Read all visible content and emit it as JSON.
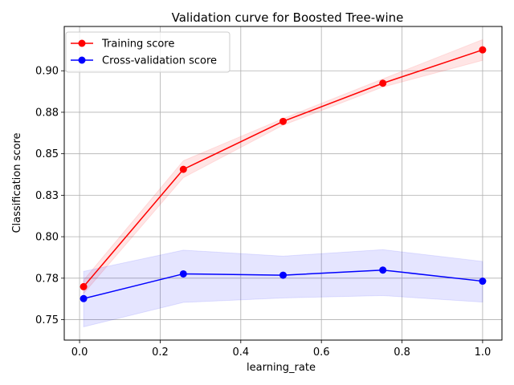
{
  "chart_data": {
    "type": "line",
    "title": "Validation curve for Boosted Tree-wine",
    "xlabel": "learning_rate",
    "ylabel": "Classification score",
    "xlim": [
      -0.038,
      1.048
    ],
    "ylim": [
      0.7377,
      0.9267
    ],
    "xticks": [
      0.0,
      0.2,
      0.4,
      0.6,
      0.8,
      1.0
    ],
    "xtick_labels": [
      "0.0",
      "0.2",
      "0.4",
      "0.6",
      "0.8",
      "1.0"
    ],
    "yticks": [
      0.75,
      0.775,
      0.8,
      0.825,
      0.85,
      0.875,
      0.9
    ],
    "ytick_labels": [
      "0.75",
      "0.78",
      "0.80",
      "0.83",
      "0.85",
      "0.88",
      "0.90"
    ],
    "grid": true,
    "legend_position": "top-left",
    "x": [
      0.01,
      0.2575,
      0.505,
      0.7525,
      1.0
    ],
    "series": [
      {
        "name": "Training score",
        "color": "#ff0000",
        "fill_color": "#ff0000",
        "values": [
          0.7699,
          0.8406,
          0.8695,
          0.8925,
          0.9126
        ],
        "band_lower": [
          0.7658,
          0.8356,
          0.8672,
          0.8902,
          0.9063
        ],
        "band_upper": [
          0.7738,
          0.8458,
          0.8712,
          0.8951,
          0.9188
        ]
      },
      {
        "name": "Cross-validation score",
        "color": "#0000ff",
        "fill_color": "#0000ff",
        "values": [
          0.7627,
          0.7776,
          0.7768,
          0.7799,
          0.7732
        ],
        "band_lower": [
          0.7457,
          0.7604,
          0.7631,
          0.7645,
          0.7606
        ],
        "band_upper": [
          0.7791,
          0.7919,
          0.7883,
          0.7922,
          0.7851
        ]
      }
    ]
  }
}
